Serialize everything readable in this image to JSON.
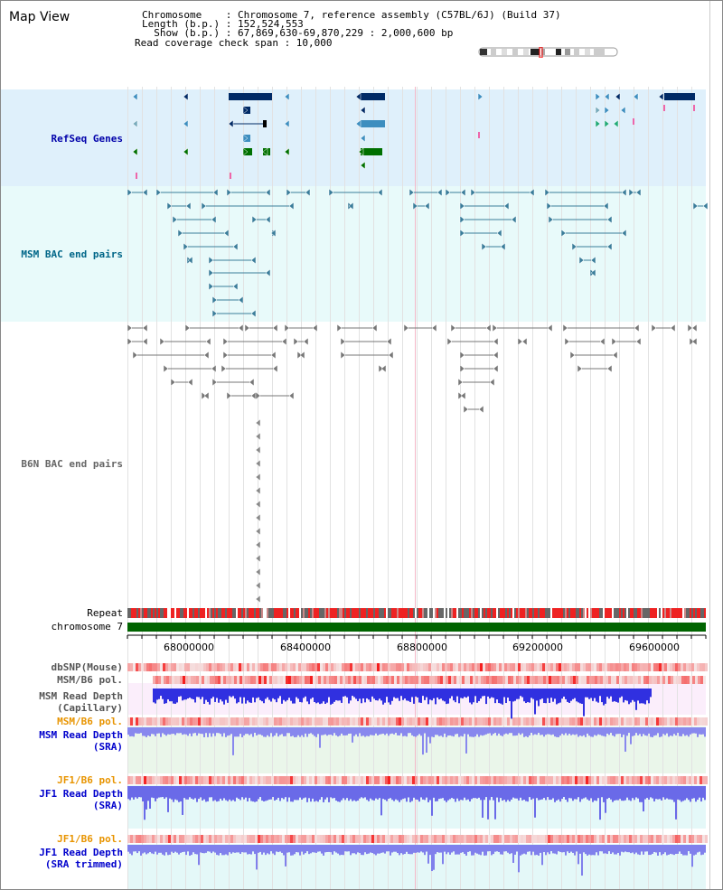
{
  "page": {
    "title": "Map View"
  },
  "info": {
    "chromosome_line": "Chromosome    : Chromosome 7, reference assembly (C57BL/6J) (Build 37)",
    "length_line": "Length (b.p.) : 152,524,553",
    "show_line": "  Show (b.p.) : 67,869,630-69,870,229 : 2,000,600 bp",
    "coverage_line": "Read coverage check span : 10,000"
  },
  "tracks": {
    "refseq": "RefSeq Genes",
    "msm_bac": "MSM BAC end pairs",
    "b6n_bac": "B6N BAC end pairs",
    "repeat": "Repeat",
    "chromosome": "chromosome 7",
    "dbsnp": "dbSNP(Mouse)",
    "msm_b6_pol_1": "MSM/B6 pol.",
    "msm_depth_cap": "MSM Read Depth\n(Capillary)",
    "msm_b6_pol_2": "MSM/B6 pol.",
    "msm_depth_sra": "MSM Read Depth\n(SRA)",
    "jf1_b6_pol_1": "JF1/B6 pol.",
    "jf1_depth_sra": "JF1 Read Depth\n(SRA)",
    "jf1_b6_pol_2": "JF1/B6 pol.",
    "jf1_depth_trim": "JF1 Read Depth\n(SRA trimmed)"
  },
  "axis": {
    "ticks": [
      "68000000",
      "68400000",
      "68800000",
      "69200000",
      "69600000"
    ]
  },
  "colors": {
    "refseq_bg": "#dff0fb",
    "msm_bg": "#e8fafa",
    "refseq_label": "#0000aa",
    "msm_label": "#006688",
    "b6n_label": "#666666",
    "pol_orange": "#e89400",
    "depth_blue": "#0000cc",
    "gene_navy": "#002a66",
    "gene_blue": "#3d8ebf",
    "gene_green": "#007000",
    "repeat_red": "#ee2222",
    "chrom_green": "#006400"
  }
}
